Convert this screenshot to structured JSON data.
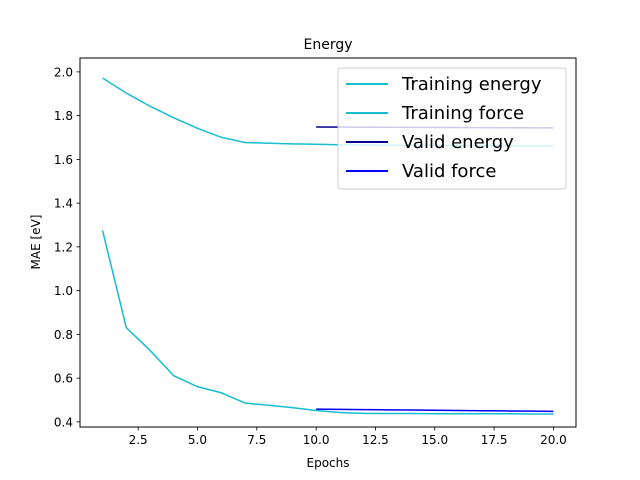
{
  "chart_data": {
    "type": "line",
    "title": "Energy",
    "xlabel": "Epochs",
    "ylabel": "MAE [eV]",
    "xlim": [
      0.05,
      20.95
    ],
    "ylim": [
      0.3765,
      2.0635
    ],
    "xticks": [
      2.5,
      5.0,
      7.5,
      10.0,
      12.5,
      15.0,
      17.5,
      20.0
    ],
    "xtick_labels": [
      "2.5",
      "5.0",
      "7.5",
      "10.0",
      "12.5",
      "15.0",
      "17.5",
      "20.0"
    ],
    "yticks": [
      0.4,
      0.6,
      0.8,
      1.0,
      1.2,
      1.4,
      1.6,
      1.8,
      2.0
    ],
    "ytick_labels": [
      "0.4",
      "0.6",
      "0.8",
      "1.0",
      "1.2",
      "1.4",
      "1.6",
      "1.8",
      "2.0"
    ],
    "legend_position": "upper right",
    "grid": false,
    "series": [
      {
        "name": "Training energy",
        "color": "#17becf",
        "x": [
          1,
          2,
          3,
          4,
          5,
          6,
          7,
          8,
          9,
          10,
          11,
          12,
          13,
          14,
          15,
          16,
          17,
          18,
          19,
          20
        ],
        "y": [
          1.972,
          1.903,
          1.843,
          1.79,
          1.742,
          1.701,
          1.677,
          1.674,
          1.671,
          1.669,
          1.667,
          1.666,
          1.665,
          1.664,
          1.664,
          1.663,
          1.663,
          1.663,
          1.662,
          1.662
        ]
      },
      {
        "name": "Training force",
        "color": "#17becf",
        "x": [
          1,
          2,
          3,
          4,
          5,
          6,
          7,
          8,
          9,
          10,
          11,
          12,
          13,
          14,
          15,
          16,
          17,
          18,
          19,
          20
        ],
        "y": [
          1.275,
          0.831,
          0.727,
          0.611,
          0.561,
          0.533,
          0.486,
          0.476,
          0.465,
          0.452,
          0.443,
          0.439,
          0.438,
          0.438,
          0.437,
          0.437,
          0.437,
          0.437,
          0.436,
          0.436
        ]
      },
      {
        "name": "Valid energy",
        "color": "#00008b",
        "x": [
          10,
          20
        ],
        "y": [
          1.748,
          1.744
        ]
      },
      {
        "name": "Valid force",
        "color": "#0000ff",
        "x": [
          10,
          11,
          12,
          13,
          14,
          15,
          16,
          17,
          18,
          19,
          20
        ],
        "y": [
          0.458,
          0.457,
          0.456,
          0.455,
          0.454,
          0.453,
          0.452,
          0.451,
          0.45,
          0.449,
          0.448
        ]
      }
    ]
  }
}
